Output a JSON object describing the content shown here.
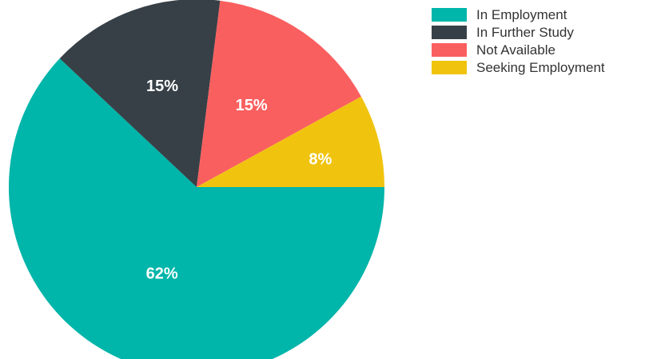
{
  "chart_data": {
    "type": "pie",
    "title": "",
    "legend_position": "top-right",
    "slices": [
      {
        "name": "In Employment",
        "value": 62,
        "label": "62%",
        "color": "#00b5a9"
      },
      {
        "name": "In Further Study",
        "value": 15,
        "label": "15%",
        "color": "#374047"
      },
      {
        "name": "Not Available",
        "value": 15,
        "label": "15%",
        "color": "#fa5f5f"
      },
      {
        "name": "Seeking Employment",
        "value": 8,
        "label": "8%",
        "color": "#f0c30f"
      }
    ]
  }
}
